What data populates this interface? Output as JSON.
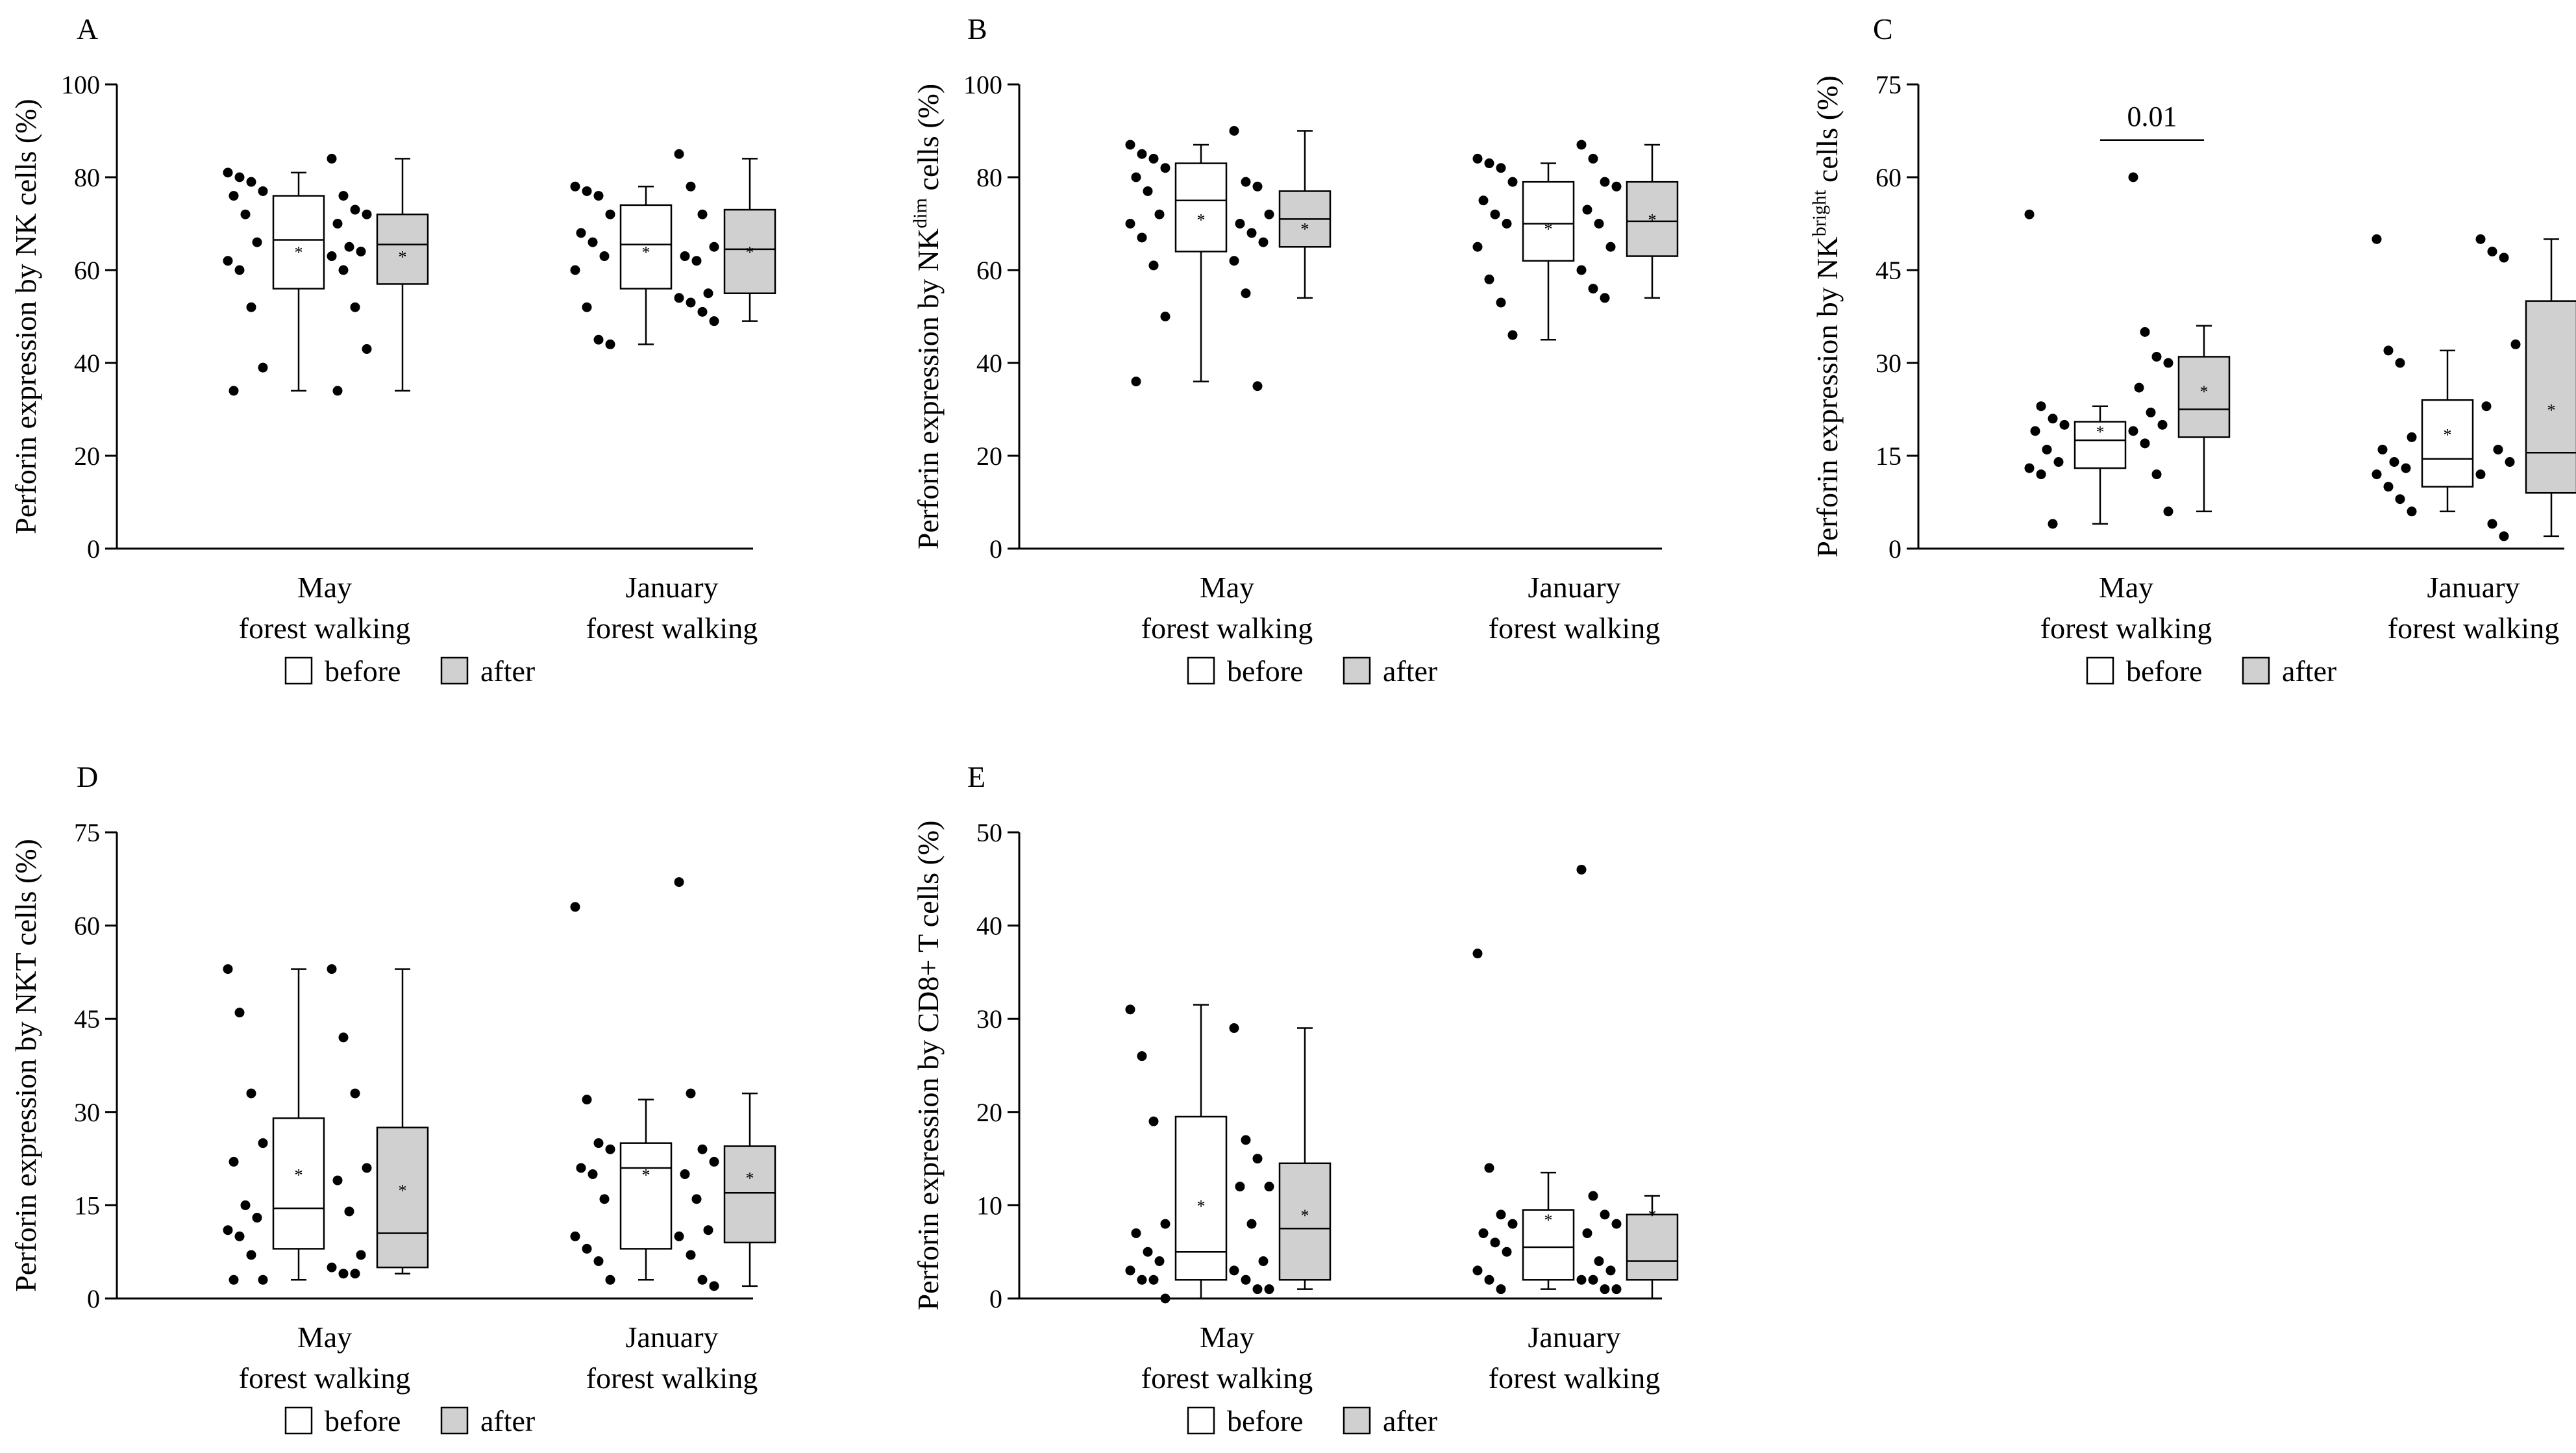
{
  "figure": {
    "legend": {
      "before_label": "before",
      "after_label": "after"
    },
    "colors": {
      "before_fill": "#ffffff",
      "after_fill": "#d0d0d0",
      "stroke": "#000000"
    }
  },
  "chart_data": [
    {
      "panel": "A",
      "type": "box",
      "ylabel": "Perforin expression by NK cells (%)",
      "ylabel_parts": [
        "Perforin expression by NK cells (%)"
      ],
      "ylim": [
        0,
        100
      ],
      "yticks": [
        0,
        20,
        40,
        60,
        80,
        100
      ],
      "groups": [
        {
          "label_line1": "May",
          "label_line2": "forest walking",
          "before": {
            "min": 34,
            "q1": 56,
            "median": 66.5,
            "q3": 76,
            "max": 81,
            "mean": 64,
            "points": [
              81,
              80,
              79,
              77,
              76,
              72,
              66,
              62,
              60,
              52,
              39,
              34
            ]
          },
          "after": {
            "min": 34,
            "q1": 57,
            "median": 65.5,
            "q3": 72,
            "max": 84,
            "mean": 63,
            "points": [
              84,
              76,
              73,
              72,
              70,
              65,
              64,
              63,
              60,
              52,
              43,
              34
            ]
          }
        },
        {
          "label_line1": "January",
          "label_line2": "forest walking",
          "before": {
            "min": 44,
            "q1": 56,
            "median": 65.5,
            "q3": 74,
            "max": 78,
            "mean": 64,
            "points": [
              78,
              77,
              76,
              72,
              68,
              66,
              63,
              60,
              52,
              45,
              44
            ]
          },
          "after": {
            "min": 49,
            "q1": 55,
            "median": 64.5,
            "q3": 73,
            "max": 84,
            "mean": 64,
            "points": [
              85,
              78,
              72,
              65,
              63,
              62,
              55,
              54,
              53,
              51,
              49
            ]
          }
        }
      ],
      "annotations": []
    },
    {
      "panel": "B",
      "type": "box",
      "ylabel": "Perforin expression by NKdim cells (%)",
      "ylabel_parts": [
        "Perforin expression by NK",
        "dim",
        " cells (%)"
      ],
      "ylim": [
        0,
        100
      ],
      "yticks": [
        0,
        20,
        40,
        60,
        80,
        100
      ],
      "groups": [
        {
          "label_line1": "May",
          "label_line2": "forest walking",
          "before": {
            "min": 36,
            "q1": 64,
            "median": 75,
            "q3": 83,
            "max": 87,
            "mean": 71,
            "points": [
              87,
              85,
              84,
              82,
              80,
              77,
              72,
              70,
              67,
              61,
              50,
              36
            ]
          },
          "after": {
            "min": 54,
            "q1": 65,
            "median": 71,
            "q3": 77,
            "max": 90,
            "mean": 69,
            "points": [
              90,
              79,
              78,
              72,
              70,
              68,
              66,
              62,
              55,
              35
            ]
          }
        },
        {
          "label_line1": "January",
          "label_line2": "forest walking",
          "before": {
            "min": 45,
            "q1": 62,
            "median": 70,
            "q3": 79,
            "max": 83,
            "mean": 69,
            "points": [
              84,
              83,
              82,
              79,
              75,
              72,
              70,
              65,
              58,
              53,
              46
            ]
          },
          "after": {
            "min": 54,
            "q1": 63,
            "median": 70.5,
            "q3": 79,
            "max": 87,
            "mean": 71,
            "points": [
              87,
              84,
              79,
              78,
              73,
              70,
              65,
              60,
              56,
              54
            ]
          }
        }
      ],
      "annotations": []
    },
    {
      "panel": "C",
      "type": "box",
      "ylabel": "Perforin expression by NKbright cells (%)",
      "ylabel_parts": [
        "Perforin expression by NK",
        "bright",
        " cells (%)"
      ],
      "ylim": [
        0,
        75
      ],
      "yticks": [
        0,
        15,
        30,
        45,
        60,
        75
      ],
      "groups": [
        {
          "label_line1": "May",
          "label_line2": "forest walking",
          "before": {
            "min": 4,
            "q1": 13,
            "median": 17.5,
            "q3": 20.5,
            "max": 23,
            "mean": 19,
            "points": [
              54,
              23,
              21,
              20,
              19,
              16,
              14,
              13,
              12,
              4
            ]
          },
          "after": {
            "min": 6,
            "q1": 18,
            "median": 22.5,
            "q3": 31,
            "max": 36,
            "mean": 25.5,
            "points": [
              60,
              35,
              31,
              30,
              26,
              22,
              20,
              19,
              17,
              12,
              6
            ]
          }
        },
        {
          "label_line1": "January",
          "label_line2": "forest walking",
          "before": {
            "min": 6,
            "q1": 10,
            "median": 14.5,
            "q3": 24,
            "max": 32,
            "mean": 18.5,
            "points": [
              50,
              32,
              30,
              18,
              16,
              14,
              13,
              12,
              10,
              8,
              6
            ]
          },
          "after": {
            "min": 2,
            "q1": 9,
            "median": 15.5,
            "q3": 40,
            "max": 50,
            "mean": 22.5,
            "points": [
              50,
              48,
              47,
              33,
              23,
              16,
              14,
              12,
              4,
              2
            ]
          }
        }
      ],
      "annotations": [
        {
          "text": "0.01",
          "from_group": 0,
          "from": "before",
          "to": "after",
          "y": 66
        }
      ]
    },
    {
      "panel": "D",
      "type": "box",
      "ylabel": "Perforin expression by NKT cells (%)",
      "ylabel_parts": [
        "Perforin expression by NKT cells (%)"
      ],
      "ylim": [
        0,
        75
      ],
      "yticks": [
        0,
        15,
        30,
        45,
        60,
        75
      ],
      "groups": [
        {
          "label_line1": "May",
          "label_line2": "forest walking",
          "before": {
            "min": 3,
            "q1": 8,
            "median": 14.5,
            "q3": 29,
            "max": 53,
            "mean": 20,
            "points": [
              53,
              46,
              33,
              25,
              22,
              15,
              13,
              11,
              10,
              7,
              3,
              3
            ]
          },
          "after": {
            "min": 4,
            "q1": 5,
            "median": 10.5,
            "q3": 27.5,
            "max": 53,
            "mean": 17.5,
            "points": [
              53,
              42,
              33,
              21,
              19,
              14,
              7,
              5,
              4,
              4
            ]
          }
        },
        {
          "label_line1": "January",
          "label_line2": "forest walking",
          "before": {
            "min": 3,
            "q1": 8,
            "median": 21,
            "q3": 25,
            "max": 32,
            "mean": 20,
            "points": [
              63,
              32,
              25,
              24,
              21,
              20,
              16,
              10,
              8,
              6,
              3
            ]
          },
          "after": {
            "min": 2,
            "q1": 9,
            "median": 17,
            "q3": 24.5,
            "max": 33,
            "mean": 19.5,
            "points": [
              67,
              33,
              24,
              22,
              20,
              16,
              11,
              10,
              7,
              3,
              2
            ]
          }
        }
      ],
      "annotations": []
    },
    {
      "panel": "E",
      "type": "box",
      "ylabel": "Perforin expression by CD8+ T cells (%)",
      "ylabel_parts": [
        "Perforin expression by CD8+ T cells (%)"
      ],
      "ylim": [
        0,
        50
      ],
      "yticks": [
        0,
        10,
        20,
        30,
        40,
        50
      ],
      "groups": [
        {
          "label_line1": "May",
          "label_line2": "forest walking",
          "before": {
            "min": 0,
            "q1": 2,
            "median": 5,
            "q3": 19.5,
            "max": 31.5,
            "mean": 10,
            "points": [
              31,
              26,
              19,
              8,
              7,
              5,
              4,
              3,
              2,
              2,
              0
            ]
          },
          "after": {
            "min": 1,
            "q1": 2,
            "median": 7.5,
            "q3": 14.5,
            "max": 29,
            "mean": 9,
            "points": [
              29,
              17,
              15,
              12,
              12,
              8,
              4,
              3,
              2,
              1,
              1
            ]
          }
        },
        {
          "label_line1": "January",
          "label_line2": "forest walking",
          "before": {
            "min": 1,
            "q1": 2,
            "median": 5.5,
            "q3": 9.5,
            "max": 13.5,
            "mean": 8.5,
            "points": [
              37,
              14,
              9,
              8,
              7,
              6,
              5,
              3,
              2,
              1
            ]
          },
          "after": {
            "min": 0,
            "q1": 2,
            "median": 4,
            "q3": 9,
            "max": 11,
            "mean": 9,
            "points": [
              46,
              11,
              9,
              8,
              7,
              4,
              3,
              2,
              2,
              1,
              1
            ]
          }
        }
      ],
      "annotations": []
    }
  ]
}
